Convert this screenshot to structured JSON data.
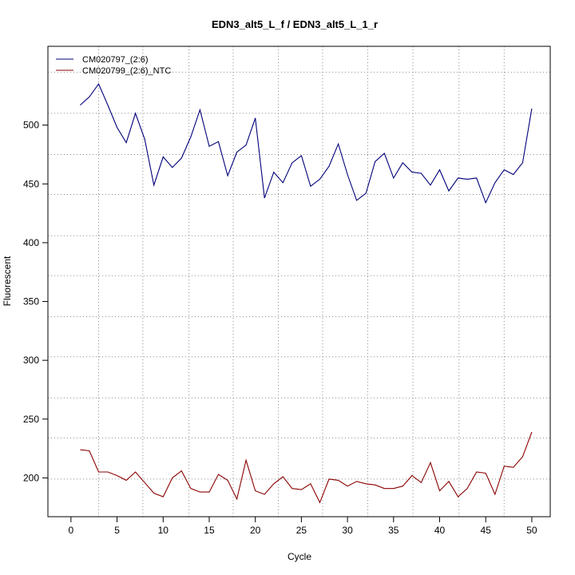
{
  "chart_data": {
    "type": "line",
    "title": "EDN3_alt5_L_f / EDN3_alt5_L_1_r",
    "xlabel": "Cycle",
    "ylabel": "Fluorescent",
    "xlim": [
      -2.5,
      52
    ],
    "ylim": [
      167,
      567
    ],
    "x_ticks": [
      0,
      5,
      10,
      15,
      20,
      25,
      30,
      35,
      40,
      45,
      50
    ],
    "y_ticks": [
      200,
      250,
      300,
      350,
      400,
      450,
      500
    ],
    "grid": "dotted",
    "x_gridlines": [
      3,
      7.8,
      12.8,
      17.6,
      22.5,
      27.3,
      32.2,
      37.1,
      42.1,
      47
    ],
    "y_gridlines": [
      199,
      234,
      268,
      303,
      337,
      372,
      406,
      441,
      475,
      510,
      545
    ],
    "legend_position": "top-left",
    "x": [
      1,
      2,
      3,
      4,
      5,
      6,
      7,
      8,
      9,
      10,
      11,
      12,
      13,
      14,
      15,
      16,
      17,
      18,
      19,
      20,
      21,
      22,
      23,
      24,
      25,
      26,
      27,
      28,
      29,
      30,
      31,
      32,
      33,
      34,
      35,
      36,
      37,
      38,
      39,
      40,
      41,
      42,
      43,
      44,
      45,
      46,
      47,
      48,
      49,
      50
    ],
    "series": [
      {
        "name": "CM020797_(2:6)",
        "color": "#00007a",
        "values": [
          517,
          524,
          535,
          517,
          498,
          485,
          510,
          488,
          449,
          473,
          464,
          472,
          490,
          513,
          482,
          486,
          457,
          477,
          483,
          506,
          438,
          460,
          451,
          468,
          474,
          448,
          454,
          465,
          484,
          458,
          436,
          442,
          469,
          476,
          455,
          468,
          460,
          459,
          449,
          462,
          444,
          455,
          454,
          455,
          434,
          451,
          462,
          458,
          468,
          514
        ]
      },
      {
        "name": "CM020799_(2:6)_NTC",
        "color": "#8b0000",
        "values": [
          224,
          223,
          205,
          205,
          202,
          198,
          205,
          196,
          187,
          184,
          200,
          206,
          191,
          188,
          188,
          203,
          198,
          182,
          215,
          189,
          186,
          195,
          201,
          191,
          190,
          195,
          179,
          199,
          198,
          193,
          197,
          195,
          194,
          191,
          191,
          193,
          202,
          196,
          213,
          189,
          197,
          184,
          191,
          205,
          204,
          186,
          210,
          209,
          218,
          239
        ]
      }
    ]
  }
}
